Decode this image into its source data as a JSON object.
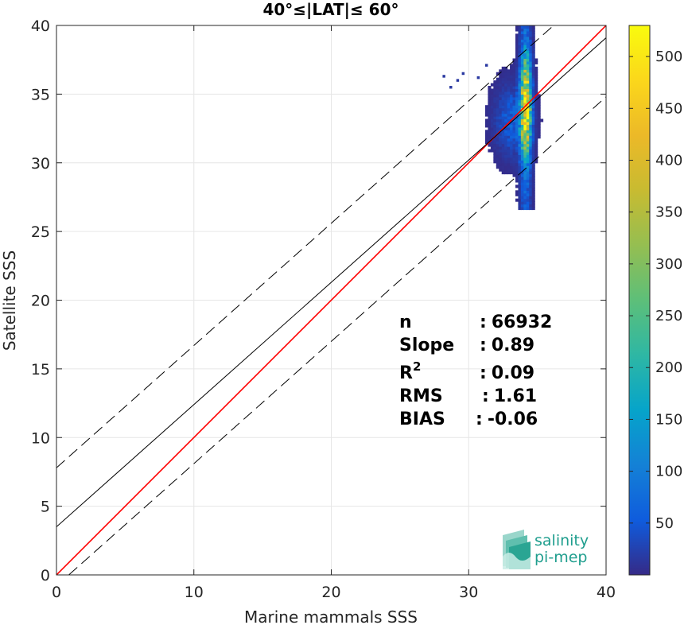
{
  "chart_data": {
    "type": "heatmap",
    "title": "40°≤|LAT|≤ 60°",
    "xlabel": "Marine mammals SSS",
    "ylabel": "Satellite SSS",
    "xlim": [
      0,
      40
    ],
    "ylim": [
      0,
      40
    ],
    "xticks": [
      0,
      10,
      20,
      30,
      40
    ],
    "yticks": [
      0,
      5,
      10,
      15,
      20,
      25,
      30,
      35,
      40
    ],
    "grid": true,
    "colormap": "parula",
    "colorbar": {
      "range": [
        0,
        530
      ],
      "ticks": [
        50,
        100,
        150,
        200,
        250,
        300,
        350,
        400,
        450,
        500
      ]
    },
    "lines": [
      {
        "kind": "identity",
        "color": "#ff0000",
        "slope": 1,
        "intercept": 0
      },
      {
        "kind": "fit",
        "color": "#000000",
        "slope": 0.89,
        "intercept": 3.5
      },
      {
        "kind": "fit-upper",
        "color": "#000000",
        "dash": true,
        "slope": 0.89,
        "intercept": 7.8
      },
      {
        "kind": "fit-lower",
        "color": "#000000",
        "dash": true,
        "slope": 0.89,
        "intercept": -0.8
      }
    ],
    "density": {
      "main_cluster": {
        "x_center": 33.1,
        "x_spread": 0.8,
        "y_center": 33.0,
        "y_spread": 1.6,
        "peak_count": 60
      },
      "vertical_ridge": {
        "x": 34.05,
        "x_spread": 0.25,
        "y_range": [
          26.5,
          40
        ],
        "peak_y": 34.0,
        "peak_count": 530
      },
      "outliers": [
        [
          28.1,
          36.2
        ],
        [
          28.6,
          35.4
        ],
        [
          29.1,
          35.9
        ],
        [
          29.5,
          36.4
        ],
        [
          30.6,
          36.1
        ],
        [
          31.2,
          37.0
        ]
      ]
    },
    "stats": [
      {
        "label": "n",
        "sep": ":",
        "value": "66932"
      },
      {
        "label": "Slope",
        "sep": ":",
        "value": "0.89"
      },
      {
        "label": "R",
        "sup": "2",
        "sep": ":",
        "value": "0.09"
      },
      {
        "label": "RMS",
        "sep": ":",
        "value": "1.61"
      },
      {
        "label": "BIAS",
        "sep": ":",
        "value": "-0.06"
      }
    ]
  },
  "logo": {
    "line1": "salinity",
    "line2": "pi-mep",
    "color": "#1f9e8e"
  }
}
